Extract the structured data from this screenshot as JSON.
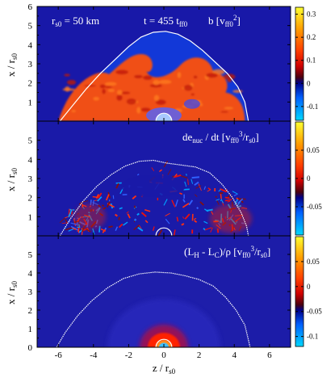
{
  "chart_data": [
    {
      "type": "heatmap",
      "panel": "top",
      "labels": {
        "r_label": "r",
        "r_sub": "s0",
        "r_eq": " = 50 km",
        "t_label": "t = 455 t",
        "t_sub": "ff0",
        "q_label": "b   [v",
        "q_sub": "ff0",
        "q_sup": "2",
        "q_end": "]"
      },
      "ylabel": {
        "main": "x / r",
        "sub": "s0"
      },
      "ylim": [
        0,
        6
      ],
      "yticks": [
        1,
        2,
        3,
        4,
        5,
        6
      ],
      "colorbar": {
        "ticks": [
          0.3,
          0.2,
          0.1,
          0,
          -0.1
        ],
        "range": [
          -0.16,
          0.33
        ]
      },
      "shock_radius_z_over_rs0": [
        [
          -5.9,
          0.0
        ],
        [
          -5.2,
          0.8
        ],
        [
          -4.4,
          1.7
        ],
        [
          -3.6,
          2.5
        ],
        [
          -2.8,
          3.2
        ],
        [
          -2.0,
          3.9
        ],
        [
          -1.3,
          4.4
        ],
        [
          -0.6,
          4.65
        ],
        [
          0.1,
          4.7
        ],
        [
          0.8,
          4.55
        ],
        [
          1.5,
          4.2
        ],
        [
          2.2,
          3.7
        ],
        [
          2.9,
          3.1
        ],
        [
          3.6,
          2.5
        ],
        [
          4.2,
          1.8
        ],
        [
          4.6,
          1.0
        ],
        [
          4.8,
          0.0
        ]
      ]
    },
    {
      "type": "heatmap",
      "panel": "middle",
      "labels": {
        "q_label": "de",
        "q_sub": "nuc",
        "q_mid": " / dt  [v",
        "q_sub2": "ff0",
        "q_sup": "3",
        "q_end": "/r",
        "q_sub3": "s0",
        "q_close": "]"
      },
      "ylabel": {
        "main": "x / r",
        "sub": "s0"
      },
      "ylim": [
        0,
        6
      ],
      "yticks": [
        1,
        2,
        3,
        4,
        5
      ],
      "colorbar": {
        "ticks": [
          0.05,
          0,
          -0.05
        ],
        "range": [
          -0.1,
          0.1
        ]
      },
      "shock_radius_z_over_rs0": [
        [
          -5.9,
          0.0
        ],
        [
          -5.3,
          0.9
        ],
        [
          -4.6,
          1.8
        ],
        [
          -3.8,
          2.6
        ],
        [
          -3.0,
          3.2
        ],
        [
          -2.2,
          3.65
        ],
        [
          -1.4,
          3.9
        ],
        [
          -0.6,
          3.95
        ],
        [
          0.2,
          3.8
        ],
        [
          1.0,
          3.7
        ],
        [
          1.8,
          3.6
        ],
        [
          2.6,
          3.3
        ],
        [
          3.3,
          2.7
        ],
        [
          3.9,
          2.0
        ],
        [
          4.4,
          1.2
        ],
        [
          4.7,
          0.5
        ],
        [
          4.8,
          0.0
        ]
      ]
    },
    {
      "type": "heatmap",
      "panel": "bottom",
      "labels": {
        "q_label": "(L",
        "q_sub": "H",
        "q_mid": " - L",
        "q_sub2": "C",
        "q_end": ")/ρ  [v",
        "q_sub3": "ff0",
        "q_sup": "3",
        "q_end2": "/r",
        "q_sub4": "s0",
        "q_close": "]"
      },
      "ylabel": {
        "main": "x / r",
        "sub": "s0"
      },
      "xlabel": {
        "main": "z / r",
        "sub": "s0"
      },
      "ylim": [
        0,
        6
      ],
      "xlim": [
        -7.2,
        7.2
      ],
      "yticks": [
        0,
        1,
        2,
        3,
        4,
        5
      ],
      "xticks": [
        -6,
        -4,
        -2,
        0,
        2,
        4,
        6
      ],
      "colorbar": {
        "ticks": [
          0.05,
          0,
          -0.05,
          -0.1
        ],
        "range": [
          -0.12,
          0.1
        ]
      },
      "shock_radius_z_over_rs0": [
        [
          -6.1,
          0.0
        ],
        [
          -5.6,
          0.8
        ],
        [
          -4.9,
          1.7
        ],
        [
          -4.1,
          2.5
        ],
        [
          -3.2,
          3.2
        ],
        [
          -2.3,
          3.7
        ],
        [
          -1.4,
          3.95
        ],
        [
          -0.5,
          4.05
        ],
        [
          0.4,
          4.0
        ],
        [
          1.2,
          3.85
        ],
        [
          2.0,
          3.65
        ],
        [
          2.8,
          3.3
        ],
        [
          3.5,
          2.7
        ],
        [
          4.1,
          2.0
        ],
        [
          4.6,
          1.2
        ],
        [
          4.8,
          0.4
        ],
        [
          4.9,
          0.0
        ]
      ]
    }
  ]
}
